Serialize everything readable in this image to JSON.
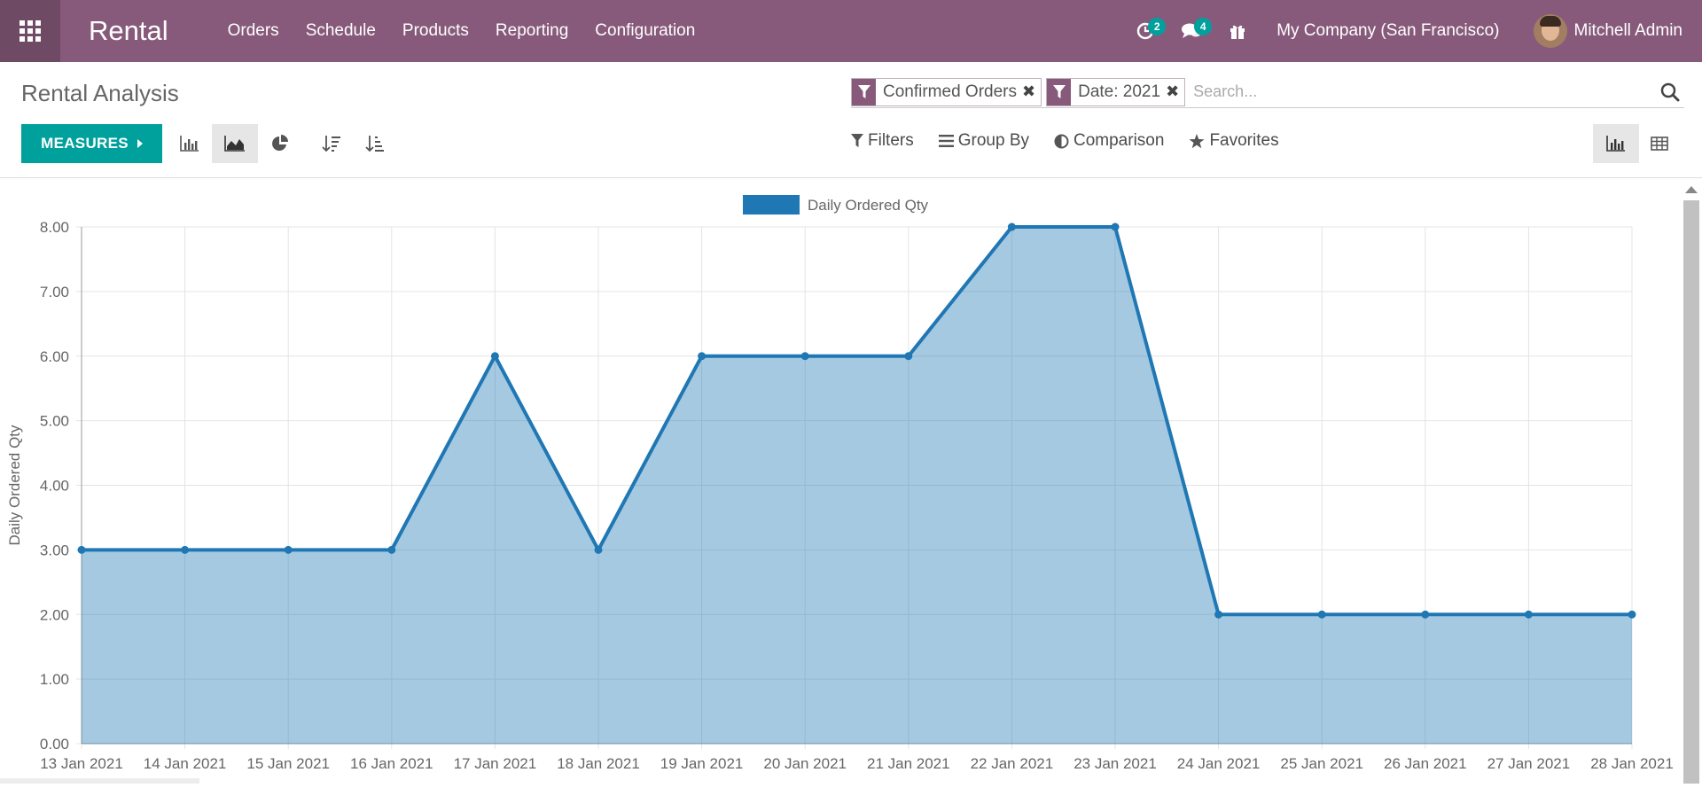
{
  "navbar": {
    "brand": "Rental",
    "menu": [
      "Orders",
      "Schedule",
      "Products",
      "Reporting",
      "Configuration"
    ],
    "activity_count": "2",
    "messages_count": "4",
    "company": "My Company (San Francisco)",
    "user": "Mitchell Admin",
    "color": "#875a7b"
  },
  "control": {
    "title": "Rental Analysis",
    "facets": [
      {
        "label": "Confirmed Orders"
      },
      {
        "label": "Date: 2021"
      }
    ],
    "search_placeholder": "Search...",
    "measures_label": "MEASURES",
    "options": [
      "Filters",
      "Group By",
      "Comparison",
      "Favorites"
    ],
    "accent": "#00a09d"
  },
  "chart_data": {
    "type": "area",
    "x": [
      "13 Jan 2021",
      "14 Jan 2021",
      "15 Jan 2021",
      "16 Jan 2021",
      "17 Jan 2021",
      "18 Jan 2021",
      "19 Jan 2021",
      "20 Jan 2021",
      "21 Jan 2021",
      "22 Jan 2021",
      "23 Jan 2021",
      "24 Jan 2021",
      "25 Jan 2021",
      "26 Jan 2021",
      "27 Jan 2021",
      "28 Jan 2021"
    ],
    "series": [
      {
        "name": "Daily Ordered Qty",
        "values": [
          3,
          3,
          3,
          3,
          6,
          3,
          6,
          6,
          6,
          8,
          8,
          2,
          2,
          2,
          2,
          2
        ],
        "color": "#1f77b4"
      }
    ],
    "yticks": [
      "0.00",
      "1.00",
      "2.00",
      "3.00",
      "4.00",
      "5.00",
      "6.00",
      "7.00",
      "8.00"
    ],
    "ylabel": "Daily Ordered Qty",
    "ylim": [
      0,
      8
    ],
    "legend": "top-center",
    "grid": true
  }
}
